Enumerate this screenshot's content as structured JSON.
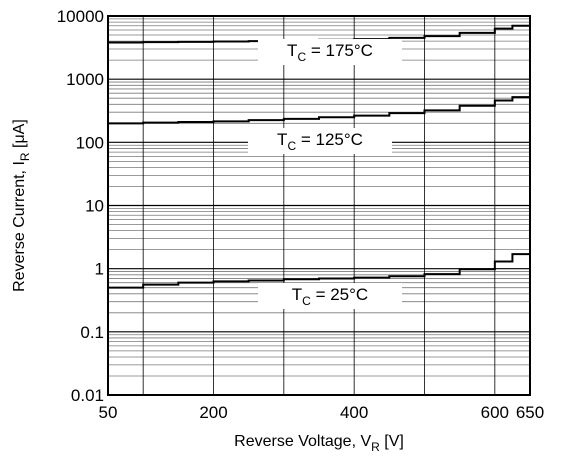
{
  "chart_data": {
    "type": "line",
    "title": "",
    "xlabel": "Reverse Voltage, V",
    "xlabel_sub": "R",
    "xlabel_unit": " [V]",
    "ylabel": "Reverse Current, I",
    "ylabel_sub": "R",
    "ylabel_unit": " [μA]",
    "xlim": [
      50,
      650
    ],
    "ylim": [
      0.01,
      10000
    ],
    "yscale": "log",
    "grid": true,
    "x_ticks": [
      50,
      200,
      400,
      600,
      650
    ],
    "y_ticks": [
      10000,
      1000,
      100,
      10,
      1,
      0.1,
      0.01
    ],
    "x_tick_labels": [
      "50",
      "200",
      "400",
      "600",
      "650"
    ],
    "y_tick_labels": [
      "10000",
      "1000",
      "100",
      "10",
      "1",
      "0.1",
      "0.01"
    ],
    "series": [
      {
        "name": "T_C = 175°C",
        "label_main": "T",
        "label_sub": "C",
        "label_rest": " = 175°C",
        "x": [
          50,
          100,
          150,
          200,
          250,
          300,
          350,
          400,
          450,
          500,
          550,
          600,
          625,
          650
        ],
        "y": [
          3800,
          3850,
          3900,
          3950,
          4000,
          4100,
          4200,
          4300,
          4500,
          4800,
          5400,
          6300,
          7000,
          8000
        ]
      },
      {
        "name": "T_C = 125°C",
        "label_main": "T",
        "label_sub": "C",
        "label_rest": " = 125°C",
        "x": [
          50,
          100,
          150,
          200,
          250,
          300,
          350,
          400,
          450,
          500,
          550,
          600,
          625,
          650
        ],
        "y": [
          200,
          205,
          210,
          215,
          225,
          235,
          250,
          265,
          290,
          320,
          380,
          460,
          520,
          600
        ]
      },
      {
        "name": "T_C = 25°C",
        "label_main": "T",
        "label_sub": "C",
        "label_rest": " = 25°C",
        "x": [
          50,
          100,
          150,
          200,
          250,
          300,
          350,
          400,
          450,
          500,
          550,
          600,
          625,
          650
        ],
        "y": [
          0.5,
          0.56,
          0.6,
          0.63,
          0.65,
          0.68,
          0.7,
          0.72,
          0.76,
          0.82,
          0.98,
          1.3,
          1.7,
          2.4
        ]
      }
    ]
  }
}
